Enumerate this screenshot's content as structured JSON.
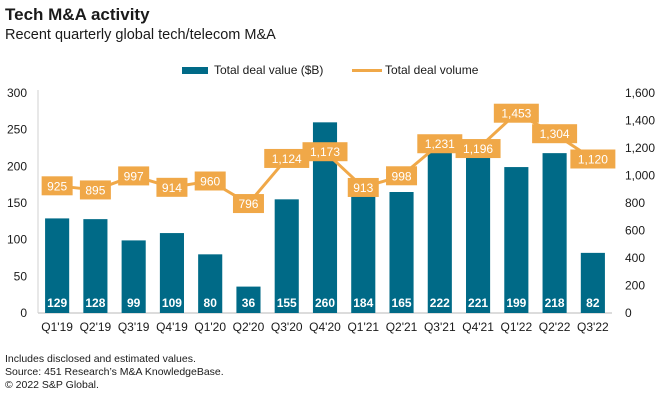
{
  "chart_data": {
    "type": "bar",
    "title": "Tech M&A activity",
    "subtitle": "Recent quarterly global tech/telecom M&A",
    "categories": [
      "Q1'19",
      "Q2'19",
      "Q3'19",
      "Q4'19",
      "Q1'20",
      "Q2'20",
      "Q3'20",
      "Q4'20",
      "Q1'21",
      "Q2'21",
      "Q3'21",
      "Q4'21",
      "Q1'22",
      "Q2'22",
      "Q3'22"
    ],
    "series": [
      {
        "name": "Total deal value ($B)",
        "type": "bar",
        "axis": "left",
        "color": "#006a87",
        "values": [
          129,
          128,
          99,
          109,
          80,
          36,
          155,
          260,
          184,
          165,
          222,
          221,
          199,
          218,
          82
        ],
        "labels": [
          "129",
          "128",
          "99",
          "109",
          "80",
          "36",
          "155",
          "260",
          "184",
          "165",
          "222",
          "221",
          "199",
          "218",
          "82"
        ]
      },
      {
        "name": "Total deal volume",
        "type": "line",
        "axis": "right",
        "color": "#f0a848",
        "values": [
          925,
          895,
          997,
          914,
          960,
          796,
          1124,
          1173,
          913,
          998,
          1231,
          1196,
          1453,
          1304,
          1120
        ],
        "labels": [
          "925",
          "895",
          "997",
          "914",
          "960",
          "796",
          "1,124",
          "1,173",
          "913",
          "998",
          "1,231",
          "1,196",
          "1,453",
          "1,304",
          "1,120"
        ]
      }
    ],
    "y_left": {
      "ylim": [
        0,
        300
      ],
      "ticks": [
        0,
        50,
        100,
        150,
        200,
        250,
        300
      ],
      "tick_labels": [
        "0",
        "50",
        "100",
        "150",
        "200",
        "250",
        "300"
      ]
    },
    "y_right": {
      "ylim": [
        0,
        1600
      ],
      "ticks": [
        0,
        200,
        400,
        600,
        800,
        1000,
        1200,
        1400,
        1600
      ],
      "tick_labels": [
        "0",
        "200",
        "400",
        "600",
        "800",
        "1,000",
        "1,200",
        "1,400",
        "1,600"
      ]
    },
    "xlabel": "",
    "ylabel": "",
    "grid": false,
    "legend_position": "top-center"
  },
  "footer": {
    "note": "Includes disclosed and estimated values.",
    "source": "Source: 451 Research’s M&A KnowledgeBase.",
    "copyright": "© 2022 S&P Global."
  }
}
